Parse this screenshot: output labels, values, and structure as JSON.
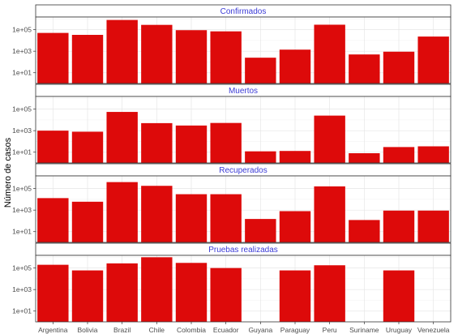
{
  "chart_data": {
    "type": "bar",
    "ylabel": "Número de casos",
    "xlabel": "",
    "scale": "log10",
    "bar_color": "#dd0a0a",
    "strip_text_color": "#3b3bd6",
    "categories": [
      "Argentina",
      "Bolivia",
      "Brazil",
      "Chile",
      "Colombia",
      "Ecuador",
      "Guyana",
      "Paraguay",
      "Peru",
      "Suriname",
      "Uruguay",
      "Venezuela"
    ],
    "yticks": [
      {
        "value": 10,
        "label": "1e+01"
      },
      {
        "value": 1000,
        "label": "1e+03"
      },
      {
        "value": 100000,
        "label": "1e+05"
      }
    ],
    "panels": [
      {
        "title": "Confirmados",
        "ylim": [
          1,
          1500000
        ],
        "values": [
          50000,
          33000,
          800000,
          280000,
          90000,
          70000,
          250,
          1400,
          290000,
          500,
          900,
          23000
        ]
      },
      {
        "title": "Muertos",
        "ylim": [
          1,
          1500000
        ],
        "values": [
          1000,
          800,
          55000,
          5000,
          3000,
          5200,
          12,
          13,
          25000,
          8,
          30,
          35
        ]
      },
      {
        "title": "Recuperados",
        "ylim": [
          1,
          1500000
        ],
        "values": [
          13000,
          6000,
          400000,
          180000,
          30000,
          30000,
          150,
          800,
          160000,
          120,
          900,
          900
        ]
      },
      {
        "title": "Pruebas realizadas",
        "ylim": [
          1,
          1500000
        ],
        "values": [
          200000,
          60000,
          270000,
          1000000,
          300000,
          100000,
          null,
          60000,
          180000,
          null,
          60000,
          null
        ]
      }
    ]
  }
}
